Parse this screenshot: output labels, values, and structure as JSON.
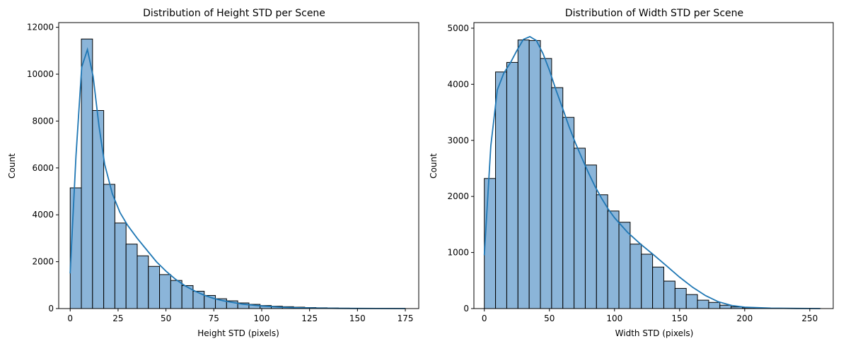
{
  "chart_data": [
    {
      "type": "bar",
      "subtype": "histogram-with-kde",
      "title": "Distribution of Height STD per Scene",
      "xlabel": "Height STD (pixels)",
      "ylabel": "Count",
      "xlim": [
        -6,
        182
      ],
      "ylim": [
        0,
        12200
      ],
      "xticks": [
        0,
        25,
        50,
        75,
        100,
        125,
        150,
        175
      ],
      "yticks": [
        0,
        2000,
        4000,
        6000,
        8000,
        10000,
        12000
      ],
      "bin_start": 0,
      "bin_width": 5.833,
      "values": [
        5150,
        11500,
        8450,
        5300,
        3650,
        2750,
        2250,
        1800,
        1450,
        1200,
        980,
        740,
        560,
        420,
        330,
        240,
        180,
        130,
        100,
        80,
        60,
        45,
        35,
        25,
        18,
        12,
        9,
        6,
        4,
        3
      ],
      "kde": {
        "x": [
          0,
          3,
          6,
          9,
          12,
          15,
          18,
          22,
          26,
          30,
          35,
          40,
          45,
          50,
          55,
          60,
          65,
          70,
          75,
          80,
          90,
          100,
          110,
          120,
          130,
          140,
          150,
          160,
          175
        ],
        "y": [
          1500,
          6500,
          10300,
          11050,
          9900,
          7800,
          6150,
          4900,
          4100,
          3550,
          3000,
          2500,
          2000,
          1600,
          1250,
          970,
          750,
          570,
          430,
          330,
          190,
          110,
          60,
          32,
          17,
          9,
          5,
          2,
          0
        ]
      },
      "grid": false,
      "bar_color": "#8bb5d9",
      "line_color": "#1f77b4"
    },
    {
      "type": "bar",
      "subtype": "histogram-with-kde",
      "title": "Distribution of Width STD per Scene",
      "xlabel": "Width STD (pixels)",
      "ylabel": "Count",
      "xlim": [
        -8,
        268
      ],
      "ylim": [
        0,
        5100
      ],
      "xticks": [
        0,
        50,
        100,
        150,
        200,
        250
      ],
      "yticks": [
        0,
        1000,
        2000,
        3000,
        4000,
        5000
      ],
      "bin_start": 0,
      "bin_width": 8.617,
      "values": [
        2320,
        4220,
        4390,
        4790,
        4780,
        4460,
        3940,
        3410,
        2860,
        2560,
        2030,
        1740,
        1540,
        1150,
        970,
        740,
        490,
        360,
        250,
        150,
        110,
        60,
        30,
        15,
        10,
        6,
        4,
        3,
        2,
        1
      ],
      "kde": {
        "x": [
          0,
          5,
          10,
          15,
          20,
          25,
          30,
          35,
          40,
          45,
          50,
          55,
          60,
          65,
          70,
          75,
          80,
          85,
          90,
          95,
          100,
          110,
          120,
          130,
          140,
          150,
          160,
          170,
          180,
          190,
          200,
          220,
          240,
          258
        ],
        "y": [
          950,
          2900,
          3900,
          4200,
          4380,
          4600,
          4800,
          4850,
          4780,
          4550,
          4250,
          3900,
          3580,
          3250,
          2950,
          2680,
          2420,
          2180,
          1970,
          1780,
          1620,
          1360,
          1150,
          960,
          760,
          560,
          380,
          230,
          120,
          55,
          25,
          8,
          2,
          0
        ]
      },
      "grid": false,
      "bar_color": "#8bb5d9",
      "line_color": "#1f77b4"
    }
  ]
}
